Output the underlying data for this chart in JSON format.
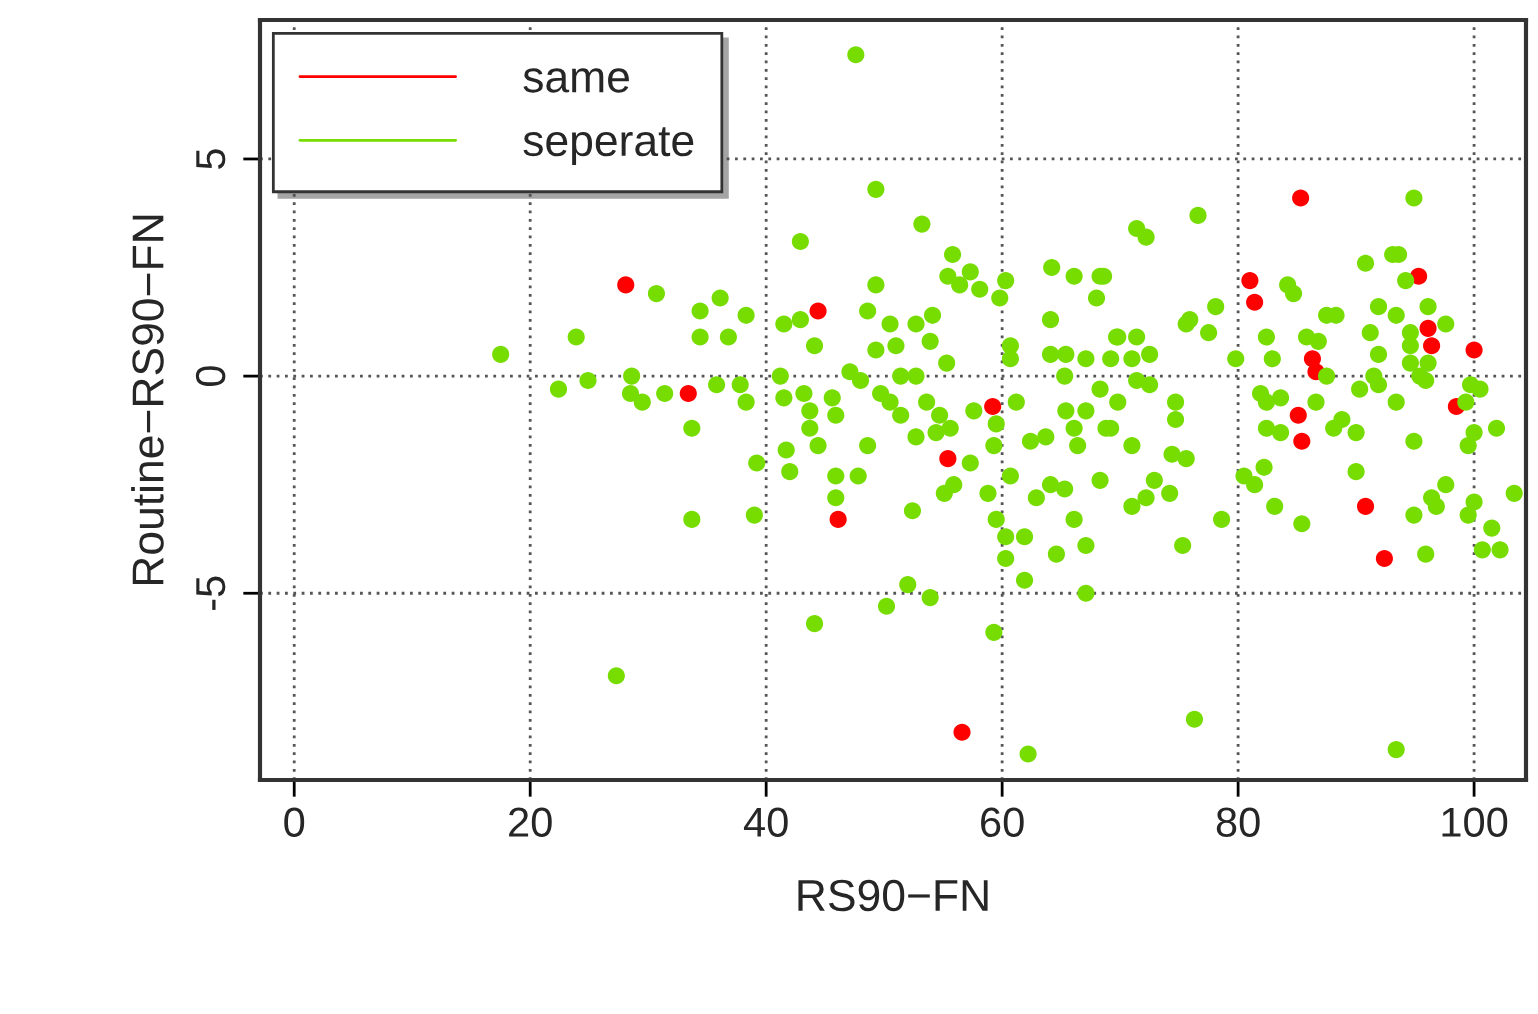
{
  "chart_data": {
    "type": "scatter",
    "xlabel": "RS90−FN",
    "ylabel": "Routine−RS90−FN",
    "xlim": [
      -2.9,
      104.4
    ],
    "ylim": [
      -9.3,
      8.2
    ],
    "xticks": [
      0,
      20,
      40,
      60,
      80,
      100
    ],
    "yticks": [
      -5,
      0,
      5
    ],
    "grid": true,
    "legend": "top left",
    "marker": "circle",
    "series": [
      {
        "name": "same",
        "color": "#ff0000",
        "x": [
          28.1,
          33.4,
          44.4,
          46.1,
          55.4,
          59.2,
          56.6,
          85.3,
          81.0,
          81.4,
          86.3,
          86.6,
          85.1,
          85.4,
          95.3,
          96.1,
          96.4,
          100.0,
          98.5,
          90.8,
          92.4
        ],
        "values": [
          2.1,
          -0.4,
          1.5,
          -3.3,
          -1.9,
          -0.7,
          -8.2,
          4.1,
          2.2,
          1.7,
          0.4,
          0.1,
          -0.9,
          -1.5,
          2.3,
          1.1,
          0.7,
          0.6,
          -0.7,
          -3.0,
          -4.2
        ]
      },
      {
        "name": "seperate",
        "color": "#77dd00",
        "x": [
          17.5,
          23.9,
          30.7,
          22.4,
          24.9,
          28.6,
          28.5,
          29.5,
          31.4,
          33.7,
          33.7,
          27.3,
          34.4,
          34.4,
          47.6,
          49.3,
          53.2,
          42.9,
          36.1,
          38.3,
          36.8,
          41.5,
          42.9,
          44.1,
          49.3,
          48.6,
          50.5,
          51.0,
          49.3,
          52.7,
          54.1,
          55.8,
          55.4,
          57.3,
          56.4,
          58.1,
          60.3,
          59.8,
          60.7,
          60.7,
          53.9,
          55.3,
          41.2,
          47.1,
          48.0,
          51.4,
          52.7,
          35.8,
          37.8,
          38.3,
          41.5,
          43.2,
          43.7,
          45.6,
          45.9,
          43.7,
          44.4,
          41.7,
          42.0,
          39.2,
          39.0,
          45.9,
          45.9,
          47.8,
          48.6,
          49.7,
          50.5,
          51.4,
          52.7,
          53.6,
          54.7,
          55.6,
          57.6,
          54.4,
          55.9,
          57.3,
          55.1,
          58.8,
          59.3,
          59.5,
          60.7,
          59.5,
          60.3,
          60.3,
          61.9,
          61.9,
          59.3,
          52.4,
          52.0,
          53.9,
          50.2,
          44.1,
          62.2,
          61.2,
          62.4,
          62.9,
          63.7,
          64.1,
          65.3,
          64.6,
          66.1,
          67.1,
          67.1,
          68.3,
          66.4,
          66.1,
          65.4,
          67.1,
          68.8,
          65.3,
          64.1,
          65.4,
          67.1,
          64.1,
          66.1,
          64.2,
          68.3,
          68.0,
          69.7,
          68.3,
          76.6,
          71.4,
          72.2,
          68.6,
          78.1,
          75.9,
          75.6,
          77.5,
          71.4,
          69.8,
          72.5,
          71.0,
          69.2,
          71.4,
          72.5,
          69.8,
          69.2,
          71.0,
          74.7,
          74.7,
          74.4,
          75.6,
          72.9,
          72.2,
          71.0,
          74.2,
          78.6,
          75.3,
          76.3,
          79.8,
          80.5,
          81.4,
          82.2,
          83.1,
          85.4,
          81.9,
          83.6,
          82.4,
          82.4,
          83.6,
          82.4,
          82.9,
          84.2,
          84.7,
          85.8,
          86.8,
          87.5,
          88.3,
          87.5,
          86.6,
          88.1,
          88.8,
          90.0,
          90.0,
          90.3,
          91.5,
          91.9,
          91.2,
          91.9,
          91.9,
          90.8,
          93.1,
          93.6,
          93.4,
          94.2,
          94.9,
          94.6,
          94.6,
          94.6,
          96.1,
          97.6,
          96.1,
          95.4,
          95.9,
          93.4,
          94.9,
          96.4,
          96.8,
          97.6,
          94.9,
          95.9,
          99.7,
          100.5,
          99.3,
          100.0,
          99.5,
          101.9,
          100.0,
          99.5,
          101.5,
          100.7,
          102.2,
          103.4,
          93.4
        ],
        "values": [
          0.5,
          0.9,
          1.9,
          -0.3,
          -0.1,
          0.0,
          -0.4,
          -0.6,
          -0.4,
          -1.2,
          -3.3,
          -6.9,
          1.5,
          0.9,
          7.4,
          4.3,
          3.5,
          3.1,
          1.8,
          1.4,
          0.9,
          1.2,
          1.3,
          0.7,
          2.1,
          1.5,
          1.2,
          0.7,
          0.6,
          1.2,
          1.4,
          2.8,
          2.3,
          2.4,
          2.1,
          2.0,
          2.2,
          1.8,
          0.7,
          0.4,
          0.8,
          0.3,
          0.0,
          0.1,
          -0.1,
          0.0,
          0.0,
          -0.2,
          -0.2,
          -0.6,
          -0.5,
          -0.4,
          -0.8,
          -0.5,
          -0.9,
          -1.2,
          -1.6,
          -1.7,
          -2.2,
          -2.0,
          -3.2,
          -2.3,
          -2.8,
          -2.3,
          -1.6,
          -0.4,
          -0.6,
          -0.9,
          -1.4,
          -0.6,
          -0.9,
          -1.2,
          -0.8,
          -1.3,
          -2.5,
          -2.0,
          -2.7,
          -2.7,
          -1.6,
          -1.1,
          -2.3,
          -3.3,
          -3.7,
          -4.2,
          -3.7,
          -4.7,
          -5.9,
          -3.1,
          -4.8,
          -5.1,
          -5.3,
          -5.7,
          -8.7,
          -0.6,
          -1.5,
          -2.8,
          -1.4,
          -2.5,
          -2.6,
          -4.1,
          -3.3,
          -3.9,
          -5.0,
          -2.4,
          -1.6,
          -1.2,
          -0.8,
          -0.8,
          -1.2,
          0.0,
          0.5,
          0.5,
          0.4,
          1.3,
          2.3,
          2.5,
          2.3,
          1.8,
          0.9,
          -0.3,
          3.7,
          3.4,
          3.2,
          2.3,
          1.6,
          1.3,
          1.2,
          1.0,
          0.9,
          0.9,
          0.5,
          0.4,
          0.4,
          -0.1,
          -0.2,
          -0.6,
          -1.2,
          -1.6,
          -0.6,
          -1.0,
          -1.8,
          -1.9,
          -2.4,
          -2.8,
          -3.0,
          -2.7,
          -3.3,
          -3.9,
          -7.9,
          0.4,
          -2.3,
          -2.5,
          -2.1,
          -3.0,
          -3.4,
          -0.4,
          -0.5,
          -0.6,
          -1.2,
          -1.3,
          0.9,
          0.4,
          2.1,
          1.9,
          0.9,
          0.8,
          1.4,
          1.4,
          0.0,
          -0.6,
          -1.2,
          -1.0,
          -1.3,
          -2.2,
          -0.3,
          0.0,
          -0.2,
          1.0,
          0.5,
          1.6,
          2.6,
          2.8,
          2.8,
          1.4,
          2.2,
          4.1,
          1.0,
          0.7,
          0.3,
          1.6,
          1.2,
          0.3,
          0.0,
          -0.1,
          -0.6,
          -1.5,
          -2.8,
          -3.0,
          -2.5,
          -3.2,
          -4.1,
          -0.2,
          -0.3,
          -0.6,
          -1.3,
          -1.6,
          -1.2,
          -2.9,
          -3.2,
          -3.5,
          -4.0,
          -4.0,
          -2.7,
          -8.6
        ]
      }
    ]
  }
}
